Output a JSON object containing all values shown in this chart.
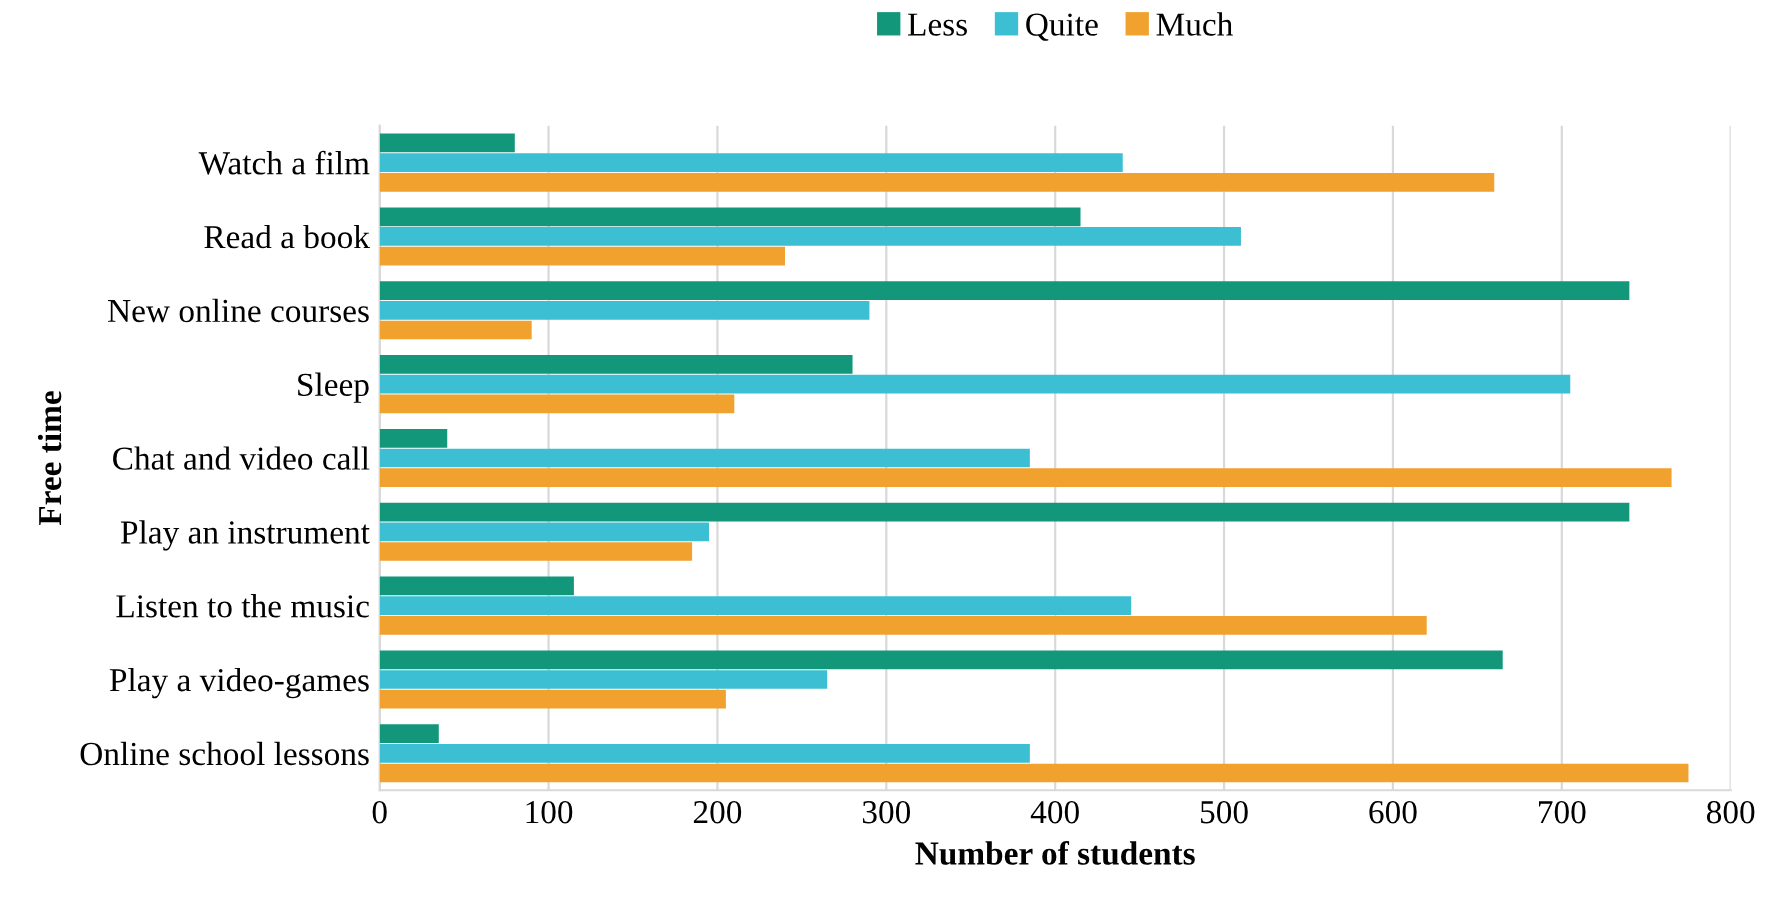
{
  "chart_data": {
    "type": "bar",
    "orientation": "horizontal",
    "xlabel": "Number of students",
    "ylabel": "Free time",
    "categories": [
      "Watch a film",
      "Read a book",
      "New online courses",
      "Sleep",
      "Chat and video call",
      "Play an instrument",
      "Listen to the music",
      "Play a video-games",
      "Online school lessons"
    ],
    "series": [
      {
        "name": "Less",
        "color": "#12977a",
        "values": [
          80,
          415,
          740,
          280,
          40,
          740,
          115,
          665,
          35
        ]
      },
      {
        "name": "Quite",
        "color": "#3cbfd2",
        "values": [
          440,
          510,
          290,
          705,
          385,
          195,
          445,
          265,
          385
        ]
      },
      {
        "name": "Much",
        "color": "#f0a12e",
        "values": [
          660,
          240,
          90,
          210,
          765,
          185,
          620,
          205,
          775
        ]
      }
    ],
    "xlim": [
      0,
      800
    ],
    "xticks": [
      0,
      100,
      200,
      300,
      400,
      500,
      600,
      700,
      800
    ],
    "grid": "x",
    "legend": "top"
  }
}
